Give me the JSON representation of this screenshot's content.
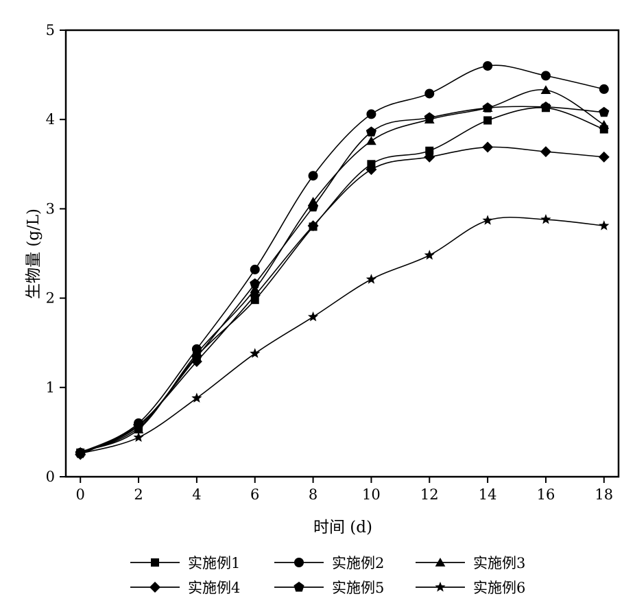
{
  "chart_data": {
    "type": "line",
    "xlabel": "时间 (d)",
    "ylabel": "生物量 (g/L)",
    "xlim": [
      -0.5,
      18.5
    ],
    "ylim": [
      0,
      5
    ],
    "xticks": [
      0,
      2,
      4,
      6,
      8,
      10,
      12,
      14,
      16,
      18
    ],
    "yticks": [
      0,
      1,
      2,
      3,
      4,
      5
    ],
    "grid": false,
    "legend_position": "bottom",
    "x": [
      0,
      2,
      4,
      6,
      8,
      10,
      12,
      14,
      16,
      18
    ],
    "series": [
      {
        "name": "实施例1",
        "marker": "square",
        "values": [
          0.27,
          0.55,
          1.35,
          1.98,
          2.8,
          3.5,
          3.65,
          3.99,
          4.13,
          3.89
        ]
      },
      {
        "name": "实施例2",
        "marker": "circle",
        "values": [
          0.27,
          0.6,
          1.43,
          2.32,
          3.37,
          4.06,
          4.29,
          4.6,
          4.49,
          4.34
        ]
      },
      {
        "name": "实施例3",
        "marker": "triangle",
        "values": [
          0.28,
          0.53,
          1.38,
          2.1,
          3.08,
          3.76,
          4.0,
          4.13,
          4.33,
          3.94
        ]
      },
      {
        "name": "实施例4",
        "marker": "diamond",
        "values": [
          0.25,
          0.58,
          1.29,
          2.03,
          2.81,
          3.44,
          3.58,
          3.69,
          3.64,
          3.58
        ]
      },
      {
        "name": "实施例5",
        "marker": "pentagon",
        "values": [
          0.26,
          0.57,
          1.34,
          2.16,
          3.02,
          3.86,
          4.02,
          4.13,
          4.14,
          4.08
        ]
      },
      {
        "name": "实施例6",
        "marker": "star",
        "values": [
          0.26,
          0.44,
          0.88,
          1.38,
          1.79,
          2.21,
          2.48,
          2.87,
          2.88,
          2.81
        ]
      }
    ]
  }
}
